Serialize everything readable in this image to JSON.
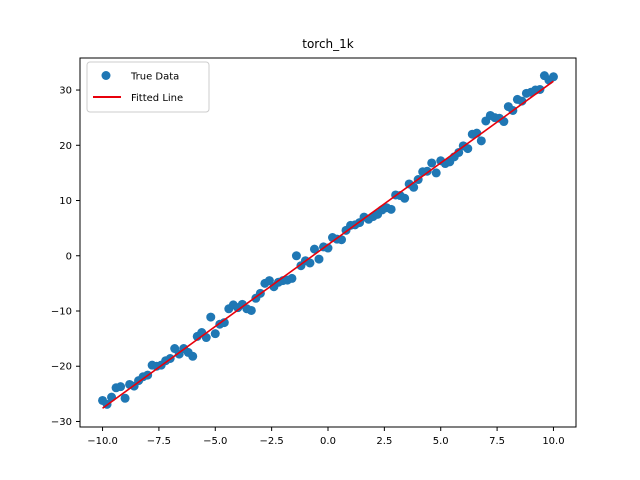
{
  "chart_data": {
    "type": "scatter",
    "title": "torch_1k",
    "xlabel": "",
    "ylabel": "",
    "xlim": [
      -11.0,
      11.0
    ],
    "ylim": [
      -31.0,
      35.8
    ],
    "xticks": [
      -10.0,
      -7.5,
      -5.0,
      -2.5,
      0.0,
      2.5,
      5.0,
      7.5,
      10.0
    ],
    "xtick_labels": [
      "−10.0",
      "−7.5",
      "−5.0",
      "−2.5",
      "0.0",
      "2.5",
      "5.0",
      "7.5",
      "10.0"
    ],
    "yticks": [
      -30,
      -20,
      -10,
      0,
      10,
      20,
      30
    ],
    "ytick_labels": [
      "−30",
      "−20",
      "−10",
      "0",
      "10",
      "20",
      "30"
    ],
    "grid": false,
    "legend_position": "top-left",
    "series": [
      {
        "name": "True Data",
        "kind": "scatter",
        "color": "#1f77b4",
        "x": [
          -10.0,
          -9.8,
          -9.6,
          -9.4,
          -9.2,
          -9.0,
          -8.8,
          -8.6,
          -8.4,
          -8.2,
          -8.0,
          -7.8,
          -7.6,
          -7.4,
          -7.2,
          -7.0,
          -6.8,
          -6.6,
          -6.4,
          -6.2,
          -6.0,
          -5.8,
          -5.6,
          -5.4,
          -5.2,
          -5.0,
          -4.8,
          -4.6,
          -4.4,
          -4.2,
          -4.0,
          -3.8,
          -3.6,
          -3.4,
          -3.2,
          -3.0,
          -2.8,
          -2.6,
          -2.4,
          -2.2,
          -2.0,
          -1.8,
          -1.6,
          -1.4,
          -1.2,
          -1.0,
          -0.8,
          -0.6,
          -0.4,
          -0.2,
          0.0,
          0.2,
          0.4,
          0.6,
          0.8,
          1.0,
          1.2,
          1.4,
          1.6,
          1.8,
          2.0,
          2.2,
          2.4,
          2.6,
          2.8,
          3.0,
          3.2,
          3.4,
          3.6,
          3.8,
          4.0,
          4.2,
          4.4,
          4.6,
          4.8,
          5.0,
          5.2,
          5.4,
          5.6,
          5.8,
          6.0,
          6.2,
          6.4,
          6.6,
          6.8,
          7.0,
          7.2,
          7.4,
          7.6,
          7.8,
          8.0,
          8.2,
          8.4,
          8.6,
          8.8,
          9.0,
          9.2,
          9.4,
          9.6,
          9.8,
          10.0
        ],
        "y": [
          -26.2,
          -26.9,
          -25.6,
          -23.9,
          -23.7,
          -25.8,
          -23.3,
          -23.6,
          -22.6,
          -21.9,
          -21.6,
          -19.8,
          -20.0,
          -19.8,
          -19.0,
          -18.6,
          -16.8,
          -17.8,
          -16.8,
          -17.5,
          -18.2,
          -14.6,
          -13.9,
          -14.8,
          -11.1,
          -14.1,
          -12.4,
          -12.1,
          -9.6,
          -8.9,
          -9.4,
          -8.8,
          -9.6,
          -9.9,
          -7.7,
          -6.8,
          -5.0,
          -4.5,
          -5.6,
          -4.8,
          -4.5,
          -4.4,
          -4.1,
          0.0,
          -1.8,
          -0.9,
          -1.3,
          1.2,
          -0.6,
          1.6,
          1.4,
          3.3,
          3.0,
          2.9,
          4.6,
          5.5,
          5.6,
          6.0,
          7.0,
          6.6,
          7.1,
          7.5,
          8.3,
          8.7,
          8.4,
          11.0,
          10.9,
          10.4,
          13.0,
          12.4,
          13.8,
          15.2,
          15.3,
          16.8,
          15.0,
          17.2,
          16.7,
          17.0,
          17.9,
          18.7,
          19.9,
          19.4,
          22.0,
          22.2,
          20.8,
          24.4,
          25.4,
          25.0,
          24.9,
          24.3,
          27.0,
          26.3,
          28.3,
          28.0,
          29.4,
          29.6,
          30.0,
          30.1,
          32.6,
          31.8,
          32.4
        ]
      },
      {
        "name": "Fitted Line",
        "kind": "line",
        "color": "#e8000b",
        "x": [
          -10.0,
          10.0
        ],
        "y": [
          -27.6,
          31.6
        ]
      }
    ]
  }
}
